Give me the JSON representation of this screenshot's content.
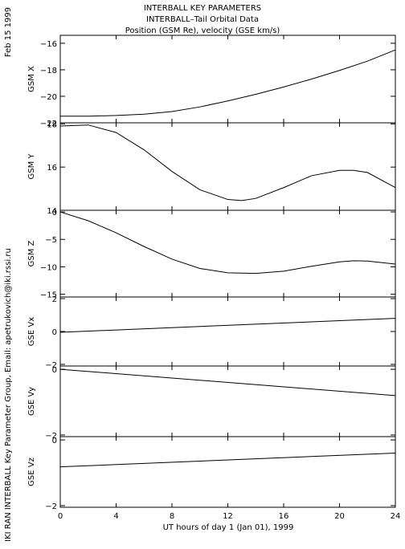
{
  "header": {
    "title_line1": "INTERBALL KEY PARAMETERS",
    "title_line2": "INTERBALL–Tail Orbital Data",
    "title_line3": "Position (GSM Re), velocity (GSE km/s)",
    "date_label": "Feb 15 1999",
    "credit": "IKI RAN INTERBALL Key Parameter Group, Email: apetrukovich@iki.rssi.ru"
  },
  "chart_data": {
    "type": "line",
    "xlabel": "UT hours of day   1 (Jan 01), 1999",
    "xlim": [
      0,
      24
    ],
    "xticks": [
      0,
      4,
      8,
      12,
      16,
      20,
      24
    ],
    "panels": [
      {
        "ylabel": "GSM X",
        "ylim": [
          -22,
          -15.4
        ],
        "yticks": [
          -22,
          -20,
          -18,
          -16
        ],
        "x": [
          0,
          2,
          4,
          6,
          8,
          10,
          12,
          14,
          16,
          18,
          20,
          22,
          24
        ],
        "y": [
          -21.5,
          -21.5,
          -21.45,
          -21.35,
          -21.15,
          -20.8,
          -20.35,
          -19.85,
          -19.3,
          -18.7,
          -18.05,
          -17.35,
          -16.5
        ]
      },
      {
        "ylabel": "GSM Y",
        "ylim": [
          14,
          18.05
        ],
        "yticks": [
          14,
          16,
          18
        ],
        "x": [
          0,
          2,
          4,
          6,
          8,
          10,
          12,
          13,
          14,
          16,
          18,
          20,
          21,
          22,
          24
        ],
        "y": [
          17.9,
          17.95,
          17.6,
          16.8,
          15.8,
          14.95,
          14.5,
          14.45,
          14.55,
          15.05,
          15.6,
          15.85,
          15.85,
          15.75,
          15.05
        ]
      },
      {
        "ylabel": "GSM Z",
        "ylim": [
          -15.5,
          0.3
        ],
        "yticks": [
          -15,
          -10,
          -5,
          0
        ],
        "x": [
          0,
          2,
          4,
          6,
          8,
          10,
          12,
          14,
          16,
          18,
          20,
          21,
          22,
          24
        ],
        "y": [
          0,
          -1.6,
          -3.8,
          -6.3,
          -8.6,
          -10.3,
          -11.1,
          -11.2,
          -10.8,
          -9.9,
          -9.1,
          -8.9,
          -8.95,
          -9.5
        ]
      },
      {
        "ylabel": "GSE Vx",
        "ylim": [
          -2.1,
          2.1
        ],
        "yticks": [
          -2,
          0,
          2
        ],
        "x": [
          0,
          24
        ],
        "y": [
          -0.05,
          0.8
        ]
      },
      {
        "ylabel": "GSE Vy",
        "ylim": [
          -2.05,
          0.1
        ],
        "yticks": [
          -2,
          0
        ],
        "x": [
          0,
          24
        ],
        "y": [
          0,
          -0.8
        ]
      },
      {
        "ylabel": "GSE Vz",
        "ylim": [
          -2.05,
          0.1
        ],
        "yticks": [
          -2,
          0
        ],
        "x": [
          0,
          24
        ],
        "y": [
          -0.82,
          -0.4
        ]
      }
    ]
  }
}
